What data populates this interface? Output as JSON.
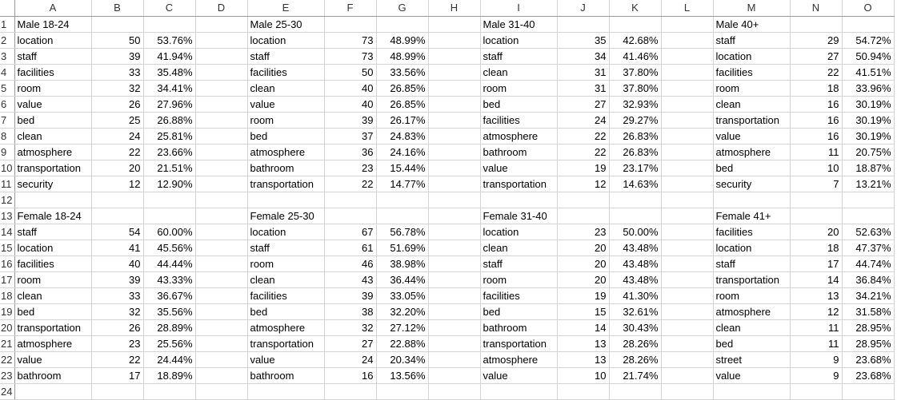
{
  "columns": [
    "A",
    "B",
    "C",
    "D",
    "E",
    "F",
    "G",
    "H",
    "I",
    "J",
    "K",
    "L",
    "M",
    "N",
    "O"
  ],
  "rows": [
    {
      "n": "1",
      "cells": [
        "Male 18-24",
        "",
        "",
        "",
        "Male 25-30",
        "",
        "",
        "",
        "Male 31-40",
        "",
        "",
        "",
        "Male 40+",
        "",
        ""
      ]
    },
    {
      "n": "2",
      "cells": [
        "location",
        "50",
        "53.76%",
        "",
        "location",
        "73",
        "48.99%",
        "",
        "location",
        "35",
        "42.68%",
        "",
        "staff",
        "29",
        "54.72%"
      ]
    },
    {
      "n": "3",
      "cells": [
        "staff",
        "39",
        "41.94%",
        "",
        "staff",
        "73",
        "48.99%",
        "",
        "staff",
        "34",
        "41.46%",
        "",
        "location",
        "27",
        "50.94%"
      ]
    },
    {
      "n": "4",
      "cells": [
        "facilities",
        "33",
        "35.48%",
        "",
        "facilities",
        "50",
        "33.56%",
        "",
        "clean",
        "31",
        "37.80%",
        "",
        "facilities",
        "22",
        "41.51%"
      ]
    },
    {
      "n": "5",
      "cells": [
        "room",
        "32",
        "34.41%",
        "",
        "clean",
        "40",
        "26.85%",
        "",
        "room",
        "31",
        "37.80%",
        "",
        "room",
        "18",
        "33.96%"
      ]
    },
    {
      "n": "6",
      "cells": [
        "value",
        "26",
        "27.96%",
        "",
        "value",
        "40",
        "26.85%",
        "",
        "bed",
        "27",
        "32.93%",
        "",
        "clean",
        "16",
        "30.19%"
      ]
    },
    {
      "n": "7",
      "cells": [
        "bed",
        "25",
        "26.88%",
        "",
        "room",
        "39",
        "26.17%",
        "",
        "facilities",
        "24",
        "29.27%",
        "",
        "transportation",
        "16",
        "30.19%"
      ]
    },
    {
      "n": "8",
      "cells": [
        "clean",
        "24",
        "25.81%",
        "",
        "bed",
        "37",
        "24.83%",
        "",
        "atmosphere",
        "22",
        "26.83%",
        "",
        "value",
        "16",
        "30.19%"
      ]
    },
    {
      "n": "9",
      "cells": [
        "atmosphere",
        "22",
        "23.66%",
        "",
        "atmosphere",
        "36",
        "24.16%",
        "",
        "bathroom",
        "22",
        "26.83%",
        "",
        "atmosphere",
        "11",
        "20.75%"
      ]
    },
    {
      "n": "10",
      "cells": [
        "transportation",
        "20",
        "21.51%",
        "",
        "bathroom",
        "23",
        "15.44%",
        "",
        "value",
        "19",
        "23.17%",
        "",
        "bed",
        "10",
        "18.87%"
      ]
    },
    {
      "n": "11",
      "cells": [
        "security",
        "12",
        "12.90%",
        "",
        "transportation",
        "22",
        "14.77%",
        "",
        "transportation",
        "12",
        "14.63%",
        "",
        "security",
        "7",
        "13.21%"
      ]
    },
    {
      "n": "12",
      "cells": [
        "",
        "",
        "",
        "",
        "",
        "",
        "",
        "",
        "",
        "",
        "",
        "",
        "",
        "",
        ""
      ]
    },
    {
      "n": "13",
      "cells": [
        "Female 18-24",
        "",
        "",
        "",
        "Female 25-30",
        "",
        "",
        "",
        "Female 31-40",
        "",
        "",
        "",
        "Female 41+",
        "",
        ""
      ]
    },
    {
      "n": "14",
      "cells": [
        "staff",
        "54",
        "60.00%",
        "",
        "location",
        "67",
        "56.78%",
        "",
        "location",
        "23",
        "50.00%",
        "",
        "facilities",
        "20",
        "52.63%"
      ]
    },
    {
      "n": "15",
      "cells": [
        "location",
        "41",
        "45.56%",
        "",
        "staff",
        "61",
        "51.69%",
        "",
        "clean",
        "20",
        "43.48%",
        "",
        "location",
        "18",
        "47.37%"
      ]
    },
    {
      "n": "16",
      "cells": [
        "facilities",
        "40",
        "44.44%",
        "",
        "room",
        "46",
        "38.98%",
        "",
        "staff",
        "20",
        "43.48%",
        "",
        "staff",
        "17",
        "44.74%"
      ]
    },
    {
      "n": "17",
      "cells": [
        "room",
        "39",
        "43.33%",
        "",
        "clean",
        "43",
        "36.44%",
        "",
        "room",
        "20",
        "43.48%",
        "",
        "transportation",
        "14",
        "36.84%"
      ]
    },
    {
      "n": "18",
      "cells": [
        "clean",
        "33",
        "36.67%",
        "",
        "facilities",
        "39",
        "33.05%",
        "",
        "facilities",
        "19",
        "41.30%",
        "",
        "room",
        "13",
        "34.21%"
      ]
    },
    {
      "n": "19",
      "cells": [
        "bed",
        "32",
        "35.56%",
        "",
        "bed",
        "38",
        "32.20%",
        "",
        "bed",
        "15",
        "32.61%",
        "",
        "atmosphere",
        "12",
        "31.58%"
      ]
    },
    {
      "n": "20",
      "cells": [
        "transportation",
        "26",
        "28.89%",
        "",
        "atmosphere",
        "32",
        "27.12%",
        "",
        "bathroom",
        "14",
        "30.43%",
        "",
        "clean",
        "11",
        "28.95%"
      ]
    },
    {
      "n": "21",
      "cells": [
        "atmosphere",
        "23",
        "25.56%",
        "",
        "transportation",
        "27",
        "22.88%",
        "",
        "transportation",
        "13",
        "28.26%",
        "",
        "bed",
        "11",
        "28.95%"
      ]
    },
    {
      "n": "22",
      "cells": [
        "value",
        "22",
        "24.44%",
        "",
        "value",
        "24",
        "20.34%",
        "",
        "atmosphere",
        "13",
        "28.26%",
        "",
        "street",
        "9",
        "23.68%"
      ]
    },
    {
      "n": "23",
      "cells": [
        "bathroom",
        "17",
        "18.89%",
        "",
        "bathroom",
        "16",
        "13.56%",
        "",
        "value",
        "10",
        "21.74%",
        "",
        "value",
        "9",
        "23.68%"
      ]
    },
    {
      "n": "24",
      "cells": [
        "",
        "",
        "",
        "",
        "",
        "",
        "",
        "",
        "",
        "",
        "",
        "",
        "",
        "",
        ""
      ]
    }
  ]
}
